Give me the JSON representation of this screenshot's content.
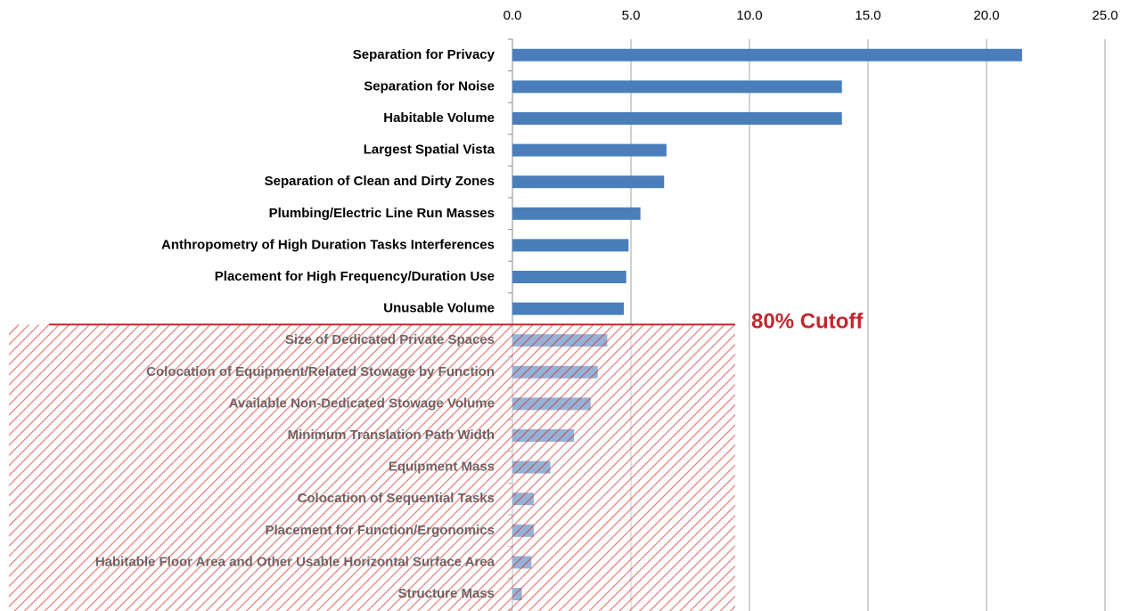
{
  "chart_data": {
    "type": "bar",
    "orientation": "horizontal",
    "categories": [
      "Separation for Privacy",
      "Separation for Noise",
      "Habitable Volume",
      "Largest Spatial Vista",
      "Separation of Clean and Dirty Zones",
      "Plumbing/Electric Line Run Masses",
      "Anthropometry of High Duration Tasks Interferences",
      "Placement for High Frequency/Duration Use",
      "Unusable Volume",
      "Size of Dedicated Private Spaces",
      "Colocation of Equipment/Related Stowage by Function",
      "Available Non-Dedicated Stowage Volume",
      "Minimum Translation Path Width",
      "Equipment Mass",
      "Colocation of Sequential Tasks",
      "Placement for Function/Ergonomics",
      "Habitable Floor Area and Other Usable Horizontal Surface Area",
      "Structure Mass"
    ],
    "values": [
      21.5,
      13.9,
      13.9,
      6.5,
      6.4,
      5.4,
      4.9,
      4.8,
      4.7,
      4.0,
      3.6,
      3.3,
      2.6,
      1.6,
      0.9,
      0.9,
      0.8,
      0.4
    ],
    "color": "#4a7ebb",
    "xlim": [
      0,
      25
    ],
    "xticks": [
      {
        "value": 0,
        "label": "0.0"
      },
      {
        "value": 5,
        "label": "5.0"
      },
      {
        "value": 10,
        "label": "10.0"
      },
      {
        "value": 15,
        "label": "15.0"
      },
      {
        "value": 20,
        "label": "20.0"
      },
      {
        "value": 25,
        "label": "25.0"
      }
    ],
    "grid": true,
    "annotation": "80% Cutoff",
    "annotation_color": "#c0282e"
  }
}
